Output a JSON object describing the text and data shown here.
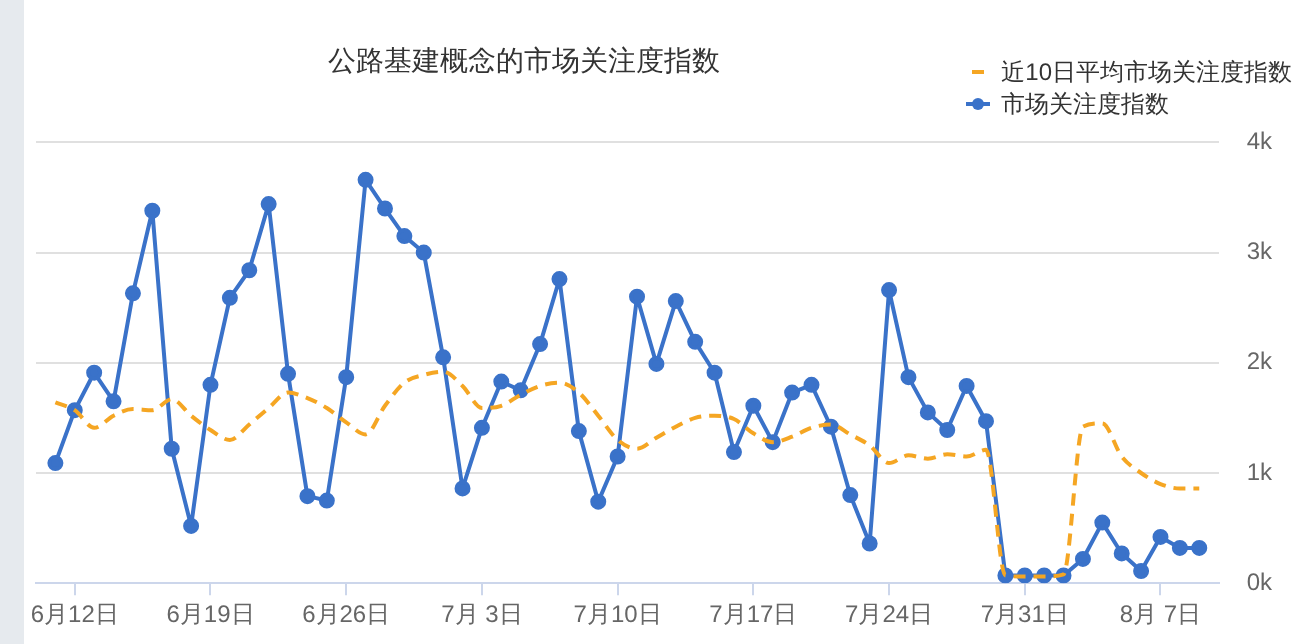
{
  "chart_data": {
    "type": "line",
    "title": "公路基建概念的市场关注度指数",
    "x": [
      "--06-11",
      "--06-12",
      "--06-13",
      "--06-14",
      "--06-15",
      "--06-16",
      "--06-17",
      "--06-18",
      "--06-19",
      "--06-20",
      "--06-21",
      "--06-22",
      "--06-23",
      "--06-24",
      "--06-25",
      "--06-26",
      "--06-27",
      "--06-28",
      "--06-29",
      "--06-30",
      "--07-01",
      "--07-02",
      "--07-03",
      "--07-04",
      "--07-05",
      "--07-06",
      "--07-07",
      "--07-08",
      "--07-09",
      "--07-10",
      "--07-11",
      "--07-12",
      "--07-13",
      "--07-14",
      "--07-15",
      "--07-16",
      "--07-17",
      "--07-18",
      "--07-19",
      "--07-20",
      "--07-21",
      "--07-22",
      "--07-23",
      "--07-24",
      "--07-25",
      "--07-26",
      "--07-27",
      "--07-28",
      "--07-29",
      "--07-30",
      "--07-31",
      "--08-01",
      "--08-02",
      "--08-03",
      "--08-04",
      "--08-05",
      "--08-06",
      "--08-07",
      "--08-08",
      "--08-09"
    ],
    "series": [
      {
        "name": "近10日平均市场关注度指数",
        "color": "#f5a623",
        "line_style": "dashed",
        "marker": "none",
        "values": [
          1640,
          1570,
          1410,
          1520,
          1580,
          1570,
          1670,
          1520,
          1390,
          1300,
          1440,
          1590,
          1730,
          1680,
          1590,
          1460,
          1350,
          1610,
          1820,
          1890,
          1920,
          1790,
          1590,
          1610,
          1710,
          1790,
          1820,
          1730,
          1520,
          1300,
          1220,
          1320,
          1420,
          1500,
          1520,
          1490,
          1360,
          1280,
          1330,
          1410,
          1440,
          1350,
          1250,
          1090,
          1160,
          1130,
          1170,
          1150,
          1210,
          70,
          60,
          60,
          80,
          1420,
          1450,
          1150,
          1000,
          900,
          860,
          860
        ]
      },
      {
        "name": "市场关注度指数",
        "color": "#3a72c9",
        "line_style": "solid",
        "marker": "circle",
        "values": [
          1090,
          1570,
          1910,
          1650,
          2630,
          3380,
          1220,
          520,
          1800,
          2590,
          2840,
          3440,
          1900,
          790,
          750,
          1870,
          3660,
          3400,
          3150,
          3000,
          2050,
          860,
          1410,
          1830,
          1750,
          2170,
          2760,
          1380,
          740,
          1150,
          2600,
          1990,
          2560,
          2190,
          1910,
          1190,
          1610,
          1280,
          1730,
          1800,
          1420,
          800,
          360,
          2660,
          1870,
          1550,
          1390,
          1790,
          1470,
          70,
          70,
          70,
          70,
          220,
          550,
          270,
          110,
          420,
          320,
          320
        ]
      }
    ],
    "xlim": [
      "--06-10",
      "--08-10"
    ],
    "xticks": [
      {
        "value": "--06-12",
        "label": "6月12日"
      },
      {
        "value": "--06-19",
        "label": "6月19日"
      },
      {
        "value": "--06-26",
        "label": "6月26日"
      },
      {
        "value": "--07-03",
        "label": "7月 3日"
      },
      {
        "value": "--07-10",
        "label": "7月10日"
      },
      {
        "value": "--07-17",
        "label": "7月17日"
      },
      {
        "value": "--07-24",
        "label": "7月24日"
      },
      {
        "value": "--07-31",
        "label": "7月31日"
      },
      {
        "value": "--08-07",
        "label": "8月 7日"
      }
    ],
    "ylim": [
      0,
      4000
    ],
    "yticks": [
      {
        "value": 0,
        "label": "0k"
      },
      {
        "value": 1000,
        "label": "1k"
      },
      {
        "value": 2000,
        "label": "2k"
      },
      {
        "value": 3000,
        "label": "3k"
      },
      {
        "value": 4000,
        "label": "4k"
      }
    ],
    "grid": "y",
    "legend": "top right"
  }
}
